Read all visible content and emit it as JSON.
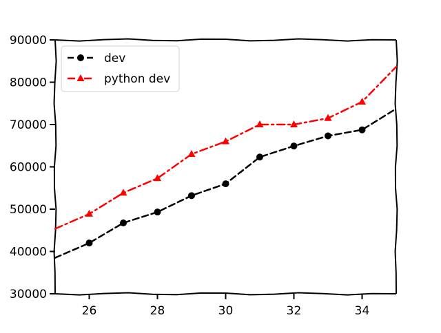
{
  "chart_data": {
    "type": "line",
    "style": "xkcd",
    "xlim": [
      25,
      35
    ],
    "ylim": [
      30000,
      90000
    ],
    "x_ticks": [
      26,
      28,
      30,
      32,
      34
    ],
    "y_ticks": [
      30000,
      40000,
      50000,
      60000,
      70000,
      80000,
      90000
    ],
    "x": [
      25,
      26,
      27,
      28,
      29,
      30,
      31,
      32,
      33,
      34,
      35
    ],
    "legend": {
      "placement": "top-left"
    },
    "grid": false,
    "series": [
      {
        "name": "dev",
        "values": [
          38496,
          42000,
          46752,
          49320,
          53200,
          56000,
          62316,
          64928,
          67317,
          68748,
          73752
        ],
        "color": "#000000",
        "line": "dashed",
        "marker": "circle"
      },
      {
        "name": "python dev",
        "values": [
          45372,
          48876,
          53850,
          57287,
          63016,
          65998,
          70003,
          70000,
          71496,
          75370,
          83640
        ],
        "color": "#ff0000",
        "line": "dash-dot",
        "marker": "triangle"
      }
    ]
  }
}
